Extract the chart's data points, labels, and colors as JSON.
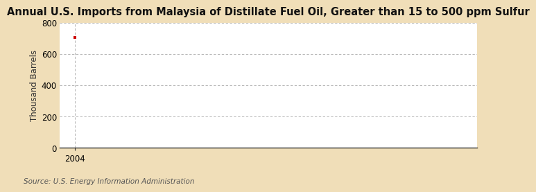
{
  "title": "Annual U.S. Imports from Malaysia of Distillate Fuel Oil, Greater than 15 to 500 ppm Sulfur",
  "ylabel": "Thousand Barrels",
  "source": "Source: U.S. Energy Information Administration",
  "x_data": [
    2004
  ],
  "y_data": [
    706
  ],
  "xlim": [
    2003.3,
    2023
  ],
  "ylim": [
    0,
    800
  ],
  "yticks": [
    0,
    200,
    400,
    600,
    800
  ],
  "xticks": [
    2004
  ],
  "background_color": "#f0deb8",
  "plot_bg_color": "#ffffff",
  "marker_color": "#cc0000",
  "grid_color": "#aaaaaa",
  "axis_color": "#333333",
  "title_fontsize": 10.5,
  "label_fontsize": 8.5,
  "tick_fontsize": 8.5,
  "source_fontsize": 7.5
}
